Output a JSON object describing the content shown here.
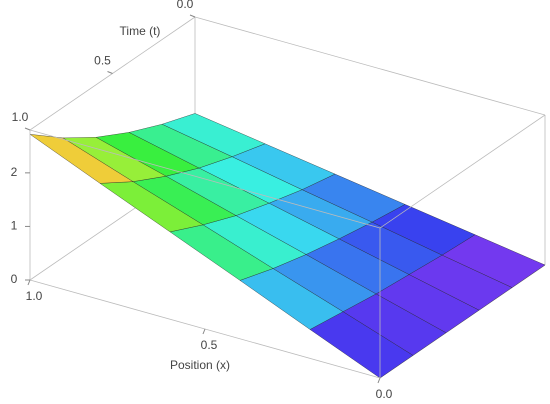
{
  "chart_data": {
    "type": "surface",
    "xlabel": "Position (x)",
    "tlabel": "Time (t)",
    "x": [
      0,
      0.2,
      0.4,
      0.6,
      0.8,
      1
    ],
    "t": [
      0,
      0.2,
      0.4,
      0.6,
      0.8,
      1
    ],
    "z": [
      [
        0,
        0.2,
        0.4,
        0.6,
        0.8,
        1
      ],
      [
        0,
        0.24,
        0.49,
        0.73,
        0.98,
        1.22
      ],
      [
        0,
        0.3,
        0.6,
        0.9,
        1.19,
        1.49
      ],
      [
        0,
        0.36,
        0.73,
        1.09,
        1.46,
        1.82
      ],
      [
        0,
        0.45,
        0.89,
        1.34,
        1.78,
        2.23
      ],
      [
        0,
        0.54,
        1.09,
        1.63,
        2.17,
        2.72
      ]
    ],
    "xlim": [
      0,
      1
    ],
    "tlim": [
      0,
      1
    ],
    "zlim": [
      0,
      2.8
    ],
    "xticks": [
      {
        "value": 0,
        "label": "0.0"
      },
      {
        "value": 0.5,
        "label": "0.5"
      },
      {
        "value": 1,
        "label": "1.0"
      }
    ],
    "tticks": [
      {
        "value": 0,
        "label": "0.0"
      },
      {
        "value": 0.5,
        "label": "0.5"
      },
      {
        "value": 1,
        "label": "1.0"
      }
    ],
    "zticks": [
      0,
      1,
      2
    ],
    "colormap": "rainbow"
  }
}
